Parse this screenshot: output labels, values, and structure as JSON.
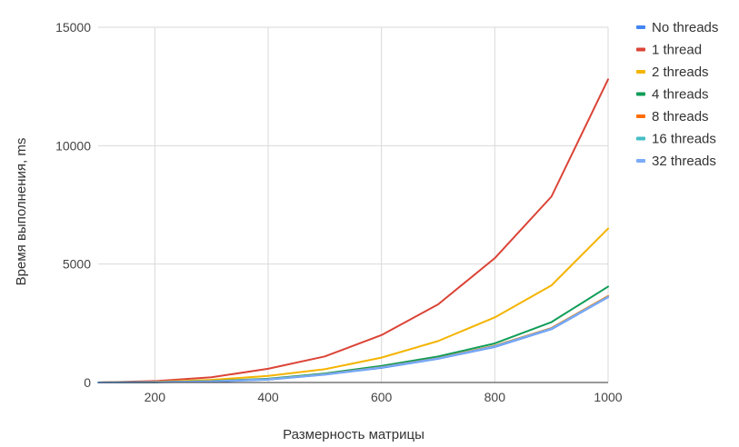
{
  "chart_data": {
    "type": "line",
    "title": "",
    "xlabel": "Размерность матрицы",
    "ylabel": "Время выполнения, ms",
    "xlim": [
      100,
      1000
    ],
    "ylim": [
      0,
      15000
    ],
    "x_ticks": [
      "200",
      "400",
      "600",
      "800",
      "1000"
    ],
    "y_ticks": [
      "0",
      "5000",
      "10000",
      "15000"
    ],
    "grid": true,
    "legend_position": "right",
    "x": [
      100,
      200,
      300,
      400,
      500,
      600,
      700,
      800,
      900,
      1000
    ],
    "series": [
      {
        "name": "No threads",
        "color": "#4285f4",
        "values": [
          0,
          10,
          40,
          120,
          330,
          620,
          1000,
          1500,
          2250,
          3600
        ]
      },
      {
        "name": "1 thread",
        "color": "#db4437",
        "values": [
          0,
          60,
          220,
          580,
          1100,
          2000,
          3300,
          5250,
          7850,
          12800
        ]
      },
      {
        "name": "2 threads",
        "color": "#f4b400",
        "values": [
          0,
          30,
          110,
          280,
          560,
          1050,
          1750,
          2750,
          4100,
          6500
        ]
      },
      {
        "name": "4 threads",
        "color": "#0f9d58",
        "values": [
          0,
          15,
          60,
          160,
          380,
          700,
          1100,
          1650,
          2550,
          4050
        ]
      },
      {
        "name": "8 threads",
        "color": "#ff6d00",
        "values": [
          0,
          12,
          50,
          140,
          350,
          650,
          1030,
          1550,
          2300,
          3650
        ]
      },
      {
        "name": "16 threads",
        "color": "#46bdc6",
        "values": [
          0,
          12,
          48,
          135,
          345,
          640,
          1020,
          1530,
          2280,
          3620
        ]
      },
      {
        "name": "32 threads",
        "color": "#7baaf7",
        "values": [
          0,
          12,
          48,
          135,
          340,
          640,
          1015,
          1520,
          2270,
          3610
        ]
      }
    ]
  }
}
